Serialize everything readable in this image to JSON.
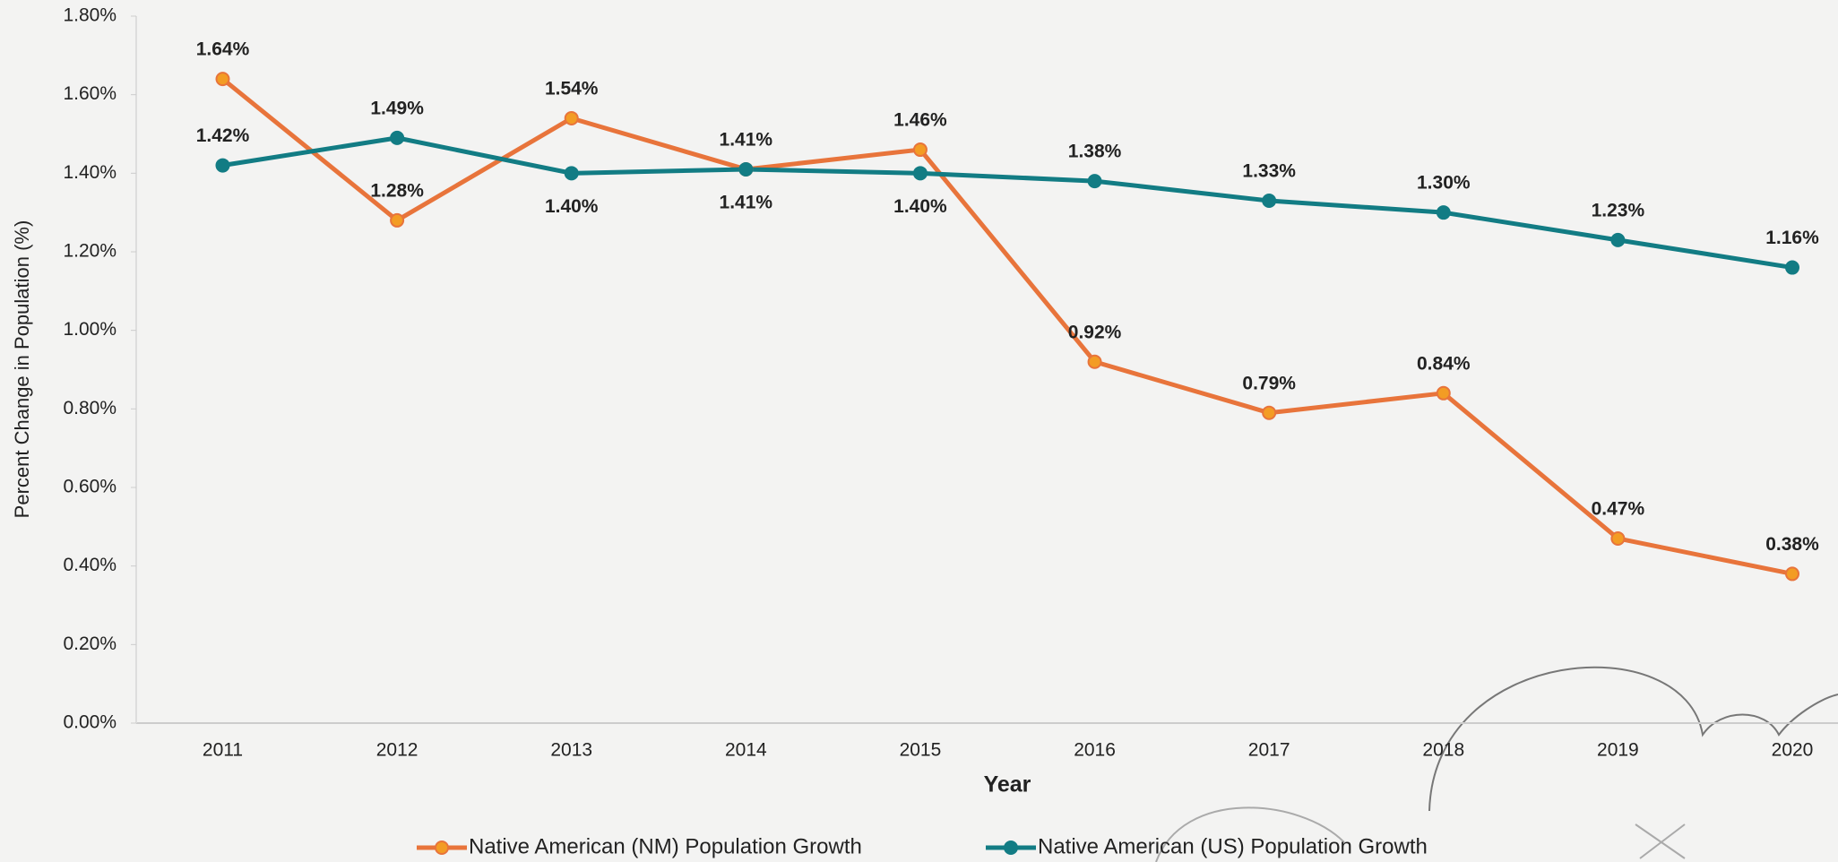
{
  "chart_data": {
    "type": "line",
    "x_label": "Year",
    "y_label": "Percent Change in Population (%)",
    "categories": [
      "2011",
      "2012",
      "2013",
      "2014",
      "2015",
      "2016",
      "2017",
      "2018",
      "2019",
      "2020"
    ],
    "series": [
      {
        "name": "Native American (NM) Population Growth",
        "color": "#e8743b",
        "marker_color": "#f39c24",
        "values": [
          1.64,
          1.28,
          1.54,
          1.41,
          1.46,
          0.92,
          0.79,
          0.84,
          0.47,
          0.38
        ],
        "value_labels": [
          "1.64%",
          "1.28%",
          "1.54%",
          "1.41%",
          "1.46%",
          "0.92%",
          "0.79%",
          "0.84%",
          "0.47%",
          "0.38%"
        ]
      },
      {
        "name": "Native American (US) Population Growth",
        "color": "#127c84",
        "marker_color": "#127c84",
        "values": [
          1.42,
          1.49,
          1.4,
          1.41,
          1.4,
          1.38,
          1.33,
          1.3,
          1.23,
          1.16
        ],
        "value_labels": [
          "1.42%",
          "1.49%",
          "1.40%",
          "1.41%",
          "1.40%",
          "1.38%",
          "1.33%",
          "1.30%",
          "1.23%",
          "1.16%"
        ]
      }
    ],
    "ylim": [
      0,
      1.8
    ],
    "yticks": [
      {
        "value": 0,
        "label": "0.00%"
      },
      {
        "value": 0.2,
        "label": "0.20%"
      },
      {
        "value": 0.4,
        "label": "0.40%"
      },
      {
        "value": 0.6,
        "label": "0.60%"
      },
      {
        "value": 0.8,
        "label": "0.80%"
      },
      {
        "value": 1.0,
        "label": "1.00%"
      },
      {
        "value": 1.2,
        "label": "1.20%"
      },
      {
        "value": 1.4,
        "label": "1.40%"
      },
      {
        "value": 1.6,
        "label": "1.60%"
      },
      {
        "value": 1.8,
        "label": "1.80%"
      }
    ],
    "legend": "bottom"
  }
}
